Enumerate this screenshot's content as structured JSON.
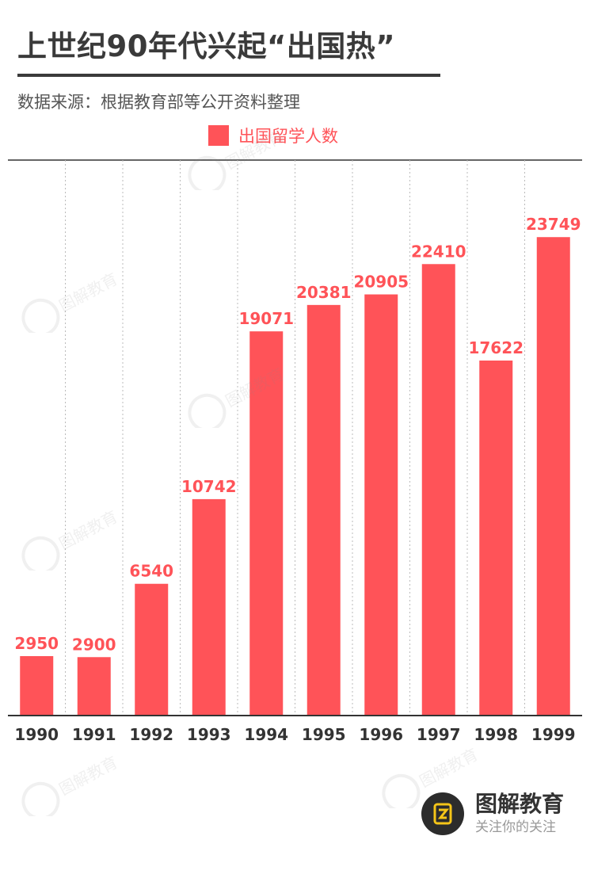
{
  "title": "上世纪90年代兴起“出国热”",
  "source": "数据来源：根据教育部等公开资料整理",
  "brand": {
    "name": "图解教育",
    "slogan": "关注你的关注",
    "watermark": "图解教育"
  },
  "colors": {
    "bar": "#ff5358",
    "label": "#ff5358",
    "axis": "#333333",
    "grid": "#bbbbbb"
  },
  "chart_data": {
    "type": "bar",
    "categories": [
      "1990",
      "1991",
      "1992",
      "1993",
      "1994",
      "1995",
      "1996",
      "1997",
      "1998",
      "1999"
    ],
    "series": [
      {
        "name": "出国留学人数",
        "values": [
          2950,
          2900,
          6540,
          10742,
          19071,
          20381,
          20905,
          22410,
          17622,
          23749
        ]
      }
    ],
    "ylim": [
      0,
      26000
    ],
    "grid": "vertical dotted",
    "legend": "top-center",
    "data_labels": true
  }
}
